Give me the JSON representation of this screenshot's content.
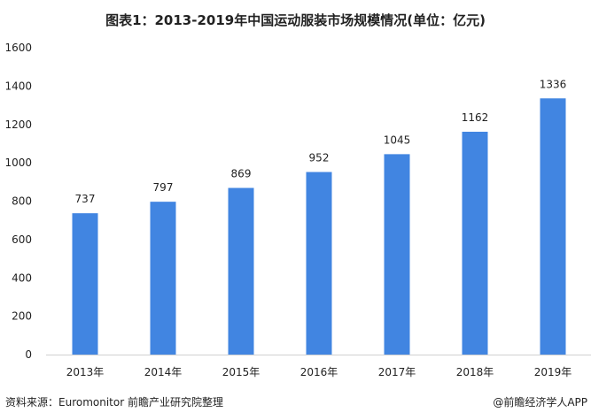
{
  "chart_data": {
    "type": "bar",
    "title": "图表1：2013-2019年中国运动服装市场规模情况(单位：亿元)",
    "categories": [
      "2013年",
      "2014年",
      "2015年",
      "2016年",
      "2017年",
      "2018年",
      "2019年"
    ],
    "values": [
      737,
      797,
      869,
      952,
      1045,
      1162,
      1336
    ],
    "ylim": [
      0,
      1600
    ],
    "yticks": [
      0,
      200,
      400,
      600,
      800,
      1000,
      1200,
      1400,
      1600
    ],
    "xlabel": "",
    "ylabel": "",
    "grid": false,
    "bar_color": "#4185e1"
  },
  "footer": {
    "source": "资料来源：Euromonitor 前瞻产业研究院整理",
    "credit": "@前瞻经济学人APP"
  }
}
